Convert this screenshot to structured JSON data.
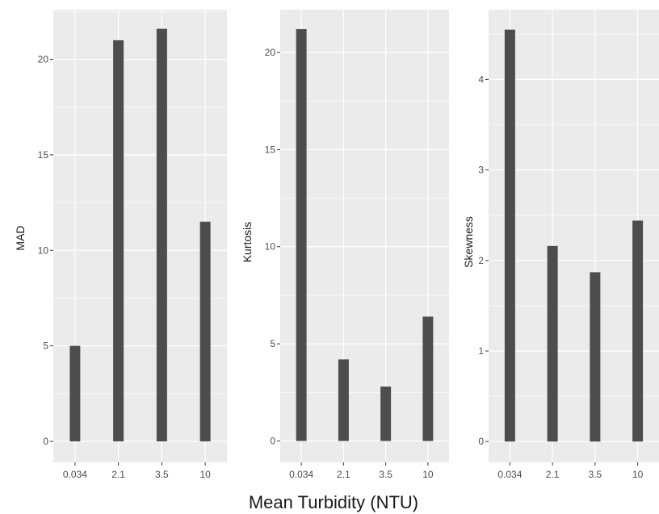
{
  "shared_xlabel": "Mean Turbidity (NTU)",
  "colors": {
    "panel_bg": "#ebebeb",
    "grid": "#ffffff",
    "bar": "#4d4d4d",
    "text": "#4d4d4d"
  },
  "chart_data": [
    {
      "type": "bar",
      "categories": [
        "0.034",
        "2.1",
        "3.5",
        "10"
      ],
      "values": [
        5.0,
        21.0,
        21.6,
        11.5
      ],
      "xlabel": "",
      "ylabel": "MAD",
      "ylim": [
        -1.1,
        22.6
      ],
      "yticks": [
        0,
        5,
        10,
        15,
        20
      ],
      "ytick_labels": [
        "0",
        "5",
        "10",
        "15",
        "20"
      ],
      "grid": true,
      "legend": "none"
    },
    {
      "type": "bar",
      "categories": [
        "0.034",
        "2.1",
        "3.5",
        "10"
      ],
      "values": [
        21.2,
        4.2,
        2.8,
        6.4
      ],
      "xlabel": "",
      "ylabel": "Kurtosis",
      "ylim": [
        -1.1,
        22.2
      ],
      "yticks": [
        0,
        5,
        10,
        15,
        20
      ],
      "ytick_labels": [
        "0",
        "5",
        "10",
        "15",
        "20"
      ],
      "grid": true,
      "legend": "none"
    },
    {
      "type": "bar",
      "categories": [
        "0.034",
        "2.1",
        "3.5",
        "10"
      ],
      "values": [
        4.55,
        2.16,
        1.87,
        2.44
      ],
      "xlabel": "",
      "ylabel": "Skewness",
      "ylim": [
        -0.23,
        4.77
      ],
      "yticks": [
        0,
        1,
        2,
        3,
        4
      ],
      "ytick_labels": [
        "0",
        "1",
        "2",
        "3",
        "4"
      ],
      "grid": true,
      "legend": "none"
    }
  ]
}
